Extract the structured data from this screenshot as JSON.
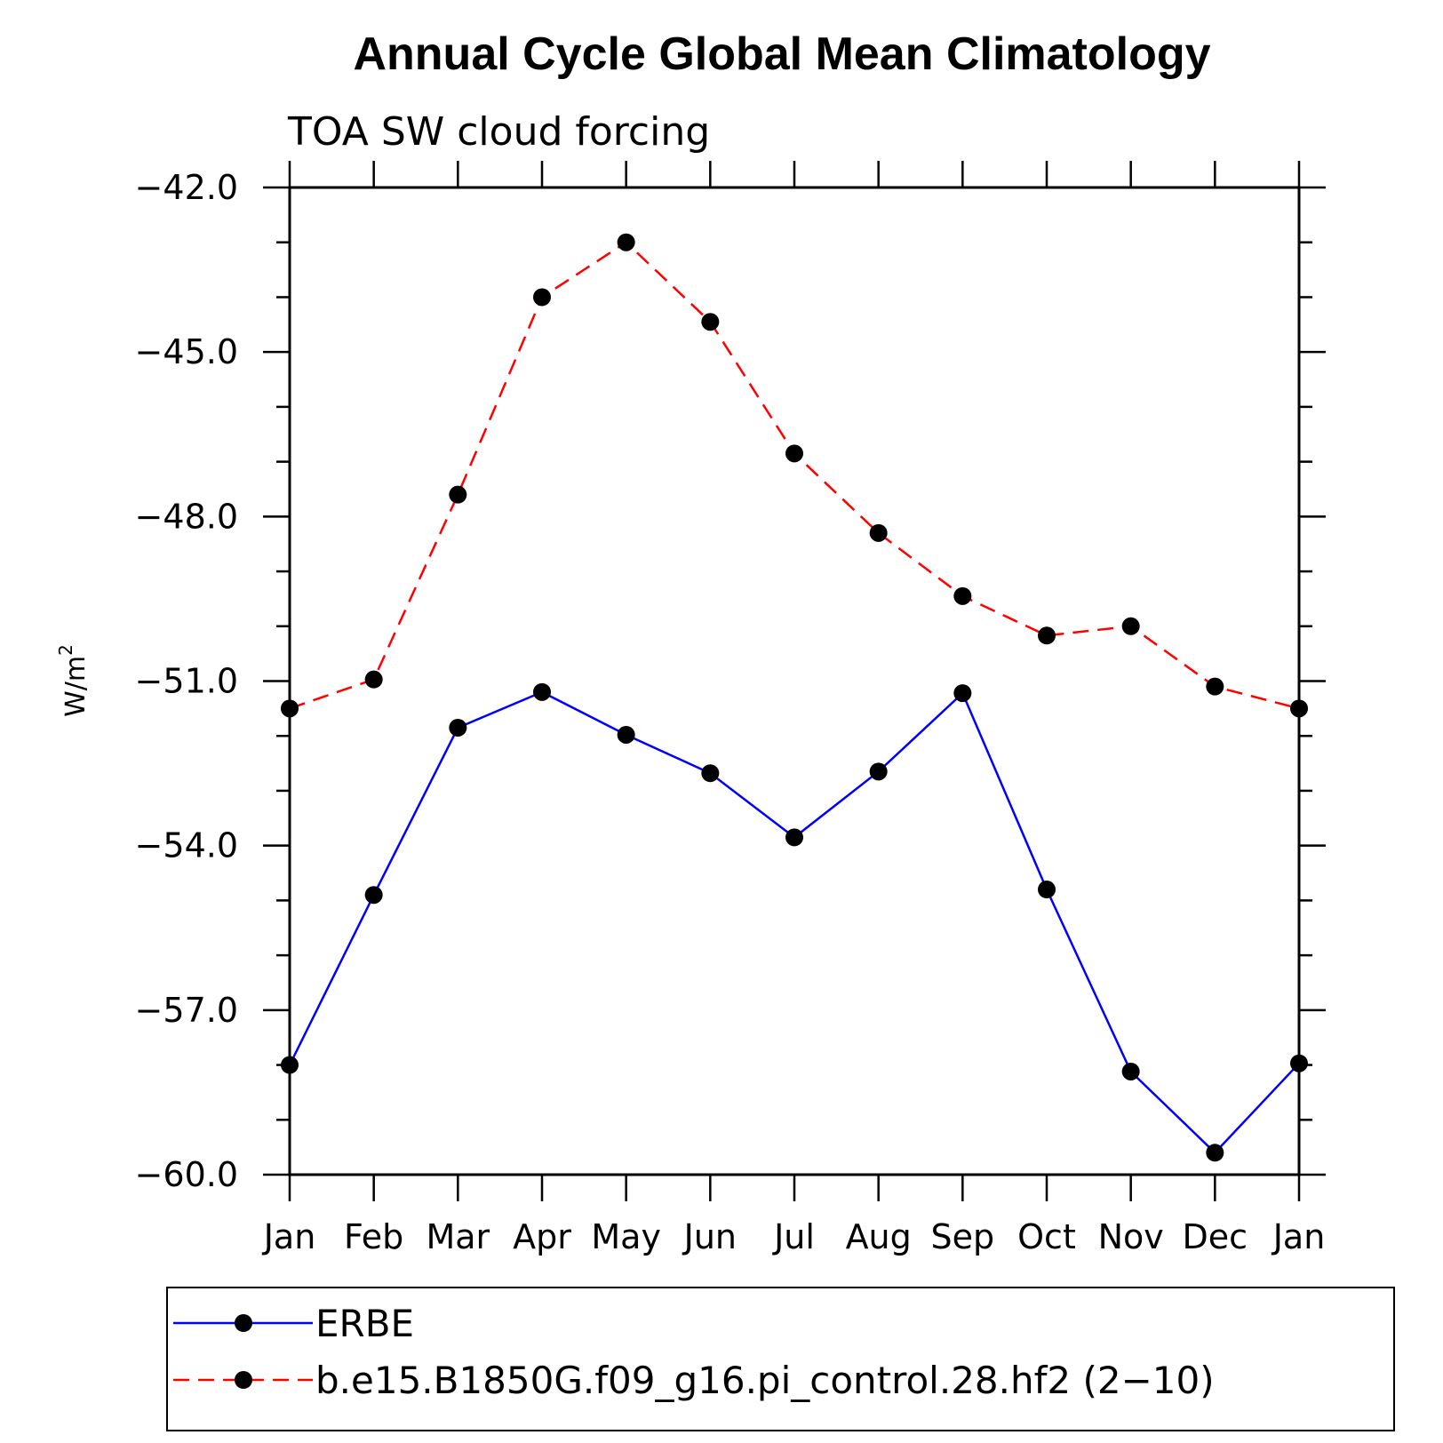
{
  "chart_data": {
    "type": "line",
    "title": "Annual Cycle Global Mean Climatology",
    "subtitle": "TOA SW cloud forcing",
    "ylabel": "W/m",
    "ylabel_superscript": "2",
    "ylim": [
      -60.0,
      -42.0
    ],
    "yticks": [
      "-42.0",
      "-45.0",
      "-48.0",
      "-51.0",
      "-54.0",
      "-57.0",
      "-60.0"
    ],
    "categories": [
      "Jan",
      "Feb",
      "Mar",
      "Apr",
      "May",
      "Jun",
      "Jul",
      "Aug",
      "Sep",
      "Oct",
      "Nov",
      "Dec",
      "Jan"
    ],
    "series": [
      {
        "name": "ERBE",
        "color": "#0000ff",
        "style": "solid",
        "values": [
          -58.0,
          -54.9,
          -51.85,
          -51.2,
          -51.98,
          -52.68,
          -53.85,
          -52.65,
          -51.22,
          -54.8,
          -58.12,
          -59.6,
          -57.97
        ]
      },
      {
        "name": "b.e15.B1850G.f09_g16.pi_control.28.hf2 (2-10)",
        "color": "#ff0000",
        "style": "dashed",
        "values": [
          -51.5,
          -50.97,
          -47.6,
          -44.0,
          -43.0,
          -44.45,
          -46.85,
          -48.3,
          -49.45,
          -50.17,
          -50.0,
          -51.1,
          -51.5
        ]
      }
    ],
    "grid": false,
    "legend_position": "bottom"
  }
}
